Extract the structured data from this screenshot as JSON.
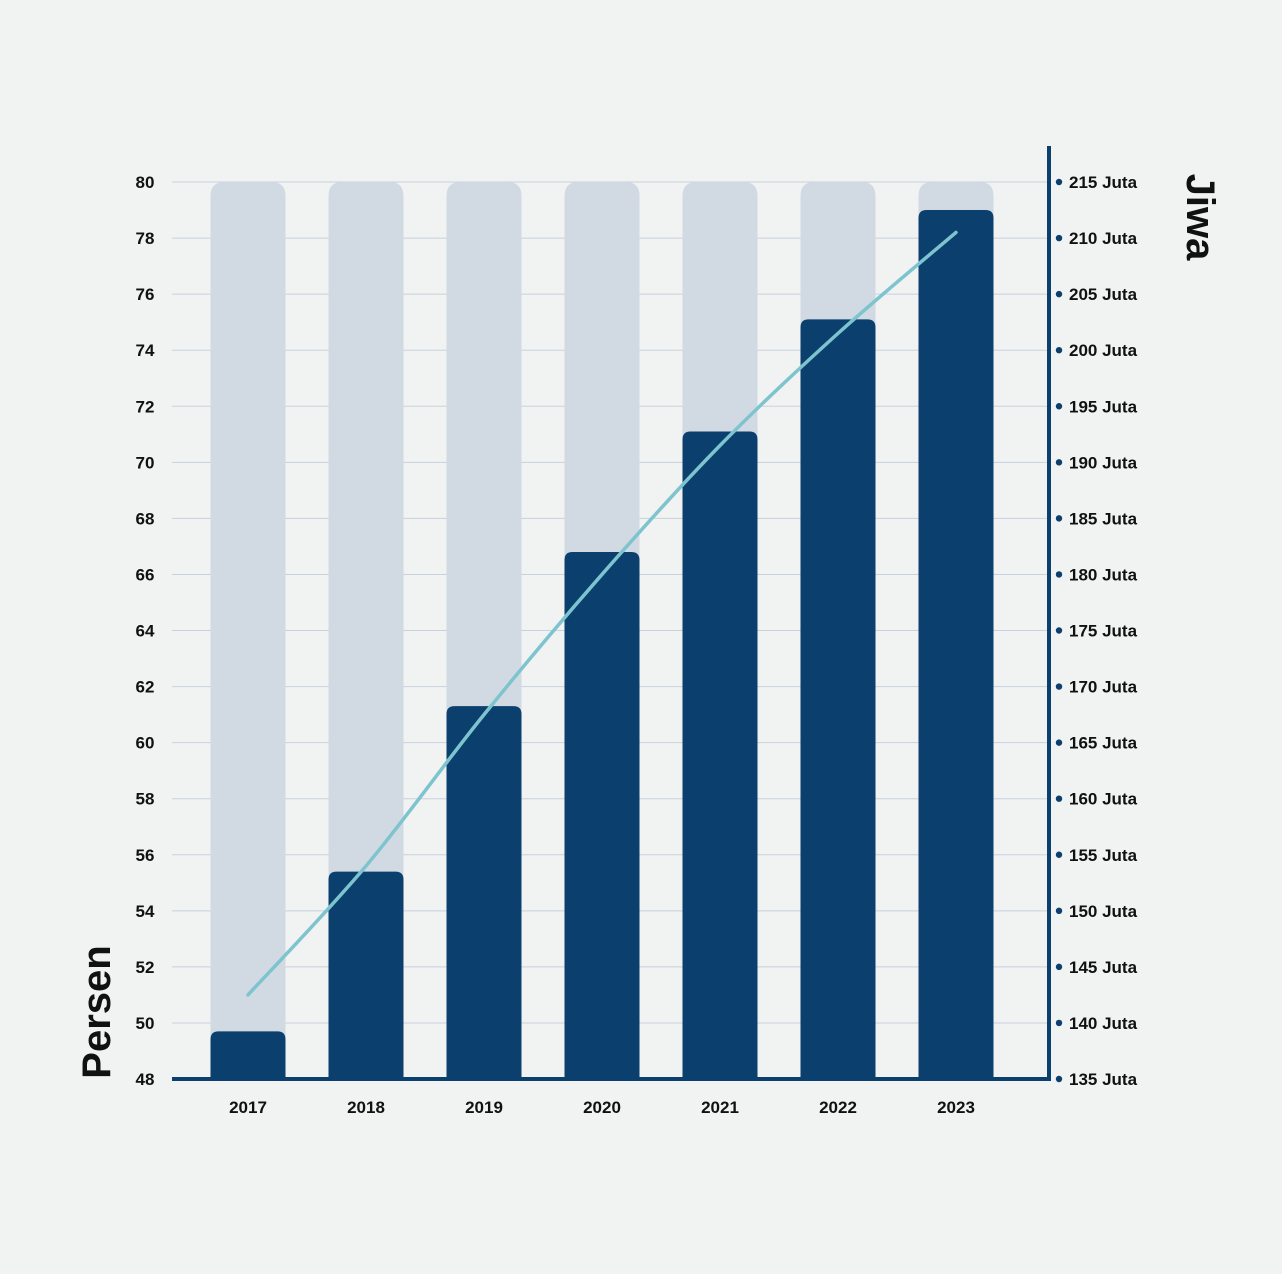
{
  "chart_data": {
    "type": "bar",
    "categories": [
      "2017",
      "2018",
      "2019",
      "2020",
      "2021",
      "2022",
      "2023"
    ],
    "series": [
      {
        "values": [
          49.7,
          55.4,
          61.3,
          66.8,
          71.1,
          75.1,
          79.0
        ],
        "axis": "left",
        "kind": "bar"
      },
      {
        "values": [
          142.5,
          154.0,
          167.5,
          180.0,
          191.5,
          201.5,
          210.5
        ],
        "axis": "right",
        "kind": "line"
      }
    ],
    "background_bar_value": 80,
    "ylabel": "Persen",
    "ylabel_right": "Jiwa",
    "ylim": [
      48,
      80
    ],
    "yticks": [
      "48",
      "50",
      "52",
      "54",
      "56",
      "58",
      "60",
      "62",
      "64",
      "66",
      "68",
      "70",
      "72",
      "74",
      "76",
      "78",
      "80"
    ],
    "ylim_right": [
      135,
      215
    ],
    "yticks_right": [
      "135 Juta",
      "140 Juta",
      "145 Juta",
      "150 Juta",
      "155 Juta",
      "160 Juta",
      "165 Juta",
      "170 Juta",
      "175 Juta",
      "180 Juta",
      "185 Juta",
      "190 Juta",
      "195 Juta",
      "200 Juta",
      "205 Juta",
      "210 Juta",
      "215 Juta"
    ],
    "grid": true,
    "colors": {
      "bar": "#0b3f6e",
      "background_bar": "#d1dae3",
      "line": "#7ec4cf",
      "axis": "#0b3f6e",
      "grid": "#c7d2dd",
      "text": "#111111"
    }
  }
}
